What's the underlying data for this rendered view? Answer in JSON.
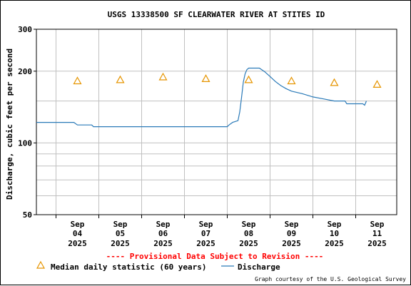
{
  "chart_data": {
    "type": "line",
    "title": "USGS 13338500 SF CLEARWATER RIVER AT STITES ID",
    "ylabel": "Discharge, cubic feet per second",
    "xlabel": "",
    "yscale": "log",
    "ylim": [
      50,
      300
    ],
    "y_ticks": [
      {
        "value": 300,
        "label": "300"
      },
      {
        "value": 200,
        "label": "200"
      },
      {
        "value": 100,
        "label": "100"
      },
      {
        "value": 50,
        "label": "50"
      }
    ],
    "y_minor_gridlines": [
      60,
      70,
      80,
      90,
      150
    ],
    "xlim": [
      "2025-09-03T13:00",
      "2025-09-11T23:00"
    ],
    "x_ticks": [
      {
        "date": "2025-09-04",
        "month": "Sep",
        "day": "04",
        "year": "2025"
      },
      {
        "date": "2025-09-05",
        "month": "Sep",
        "day": "05",
        "year": "2025"
      },
      {
        "date": "2025-09-06",
        "month": "Sep",
        "day": "06",
        "year": "2025"
      },
      {
        "date": "2025-09-07",
        "month": "Sep",
        "day": "07",
        "year": "2025"
      },
      {
        "date": "2025-09-08",
        "month": "Sep",
        "day": "08",
        "year": "2025"
      },
      {
        "date": "2025-09-09",
        "month": "Sep",
        "day": "09",
        "year": "2025"
      },
      {
        "date": "2025-09-10",
        "month": "Sep",
        "day": "10",
        "year": "2025"
      },
      {
        "date": "2025-09-11",
        "month": "Sep",
        "day": "11",
        "year": "2025"
      }
    ],
    "grid": true,
    "series": [
      {
        "name": "Median daily statistic (60 years)",
        "marker": "triangle",
        "color": "#e69500",
        "points": [
          {
            "x": "2025-09-04T12:00",
            "y": 182
          },
          {
            "x": "2025-09-05T12:00",
            "y": 184
          },
          {
            "x": "2025-09-06T12:00",
            "y": 189
          },
          {
            "x": "2025-09-07T12:00",
            "y": 186
          },
          {
            "x": "2025-09-08T12:00",
            "y": 184
          },
          {
            "x": "2025-09-09T12:00",
            "y": 182
          },
          {
            "x": "2025-09-10T12:00",
            "y": 179
          },
          {
            "x": "2025-09-11T12:00",
            "y": 176
          }
        ]
      },
      {
        "name": "Discharge",
        "marker": "line",
        "color": "#2a7ab8",
        "points": [
          {
            "x": "2025-09-03T13:00",
            "y": 122
          },
          {
            "x": "2025-09-04T10:00",
            "y": 122
          },
          {
            "x": "2025-09-04T12:00",
            "y": 119
          },
          {
            "x": "2025-09-04T20:00",
            "y": 119
          },
          {
            "x": "2025-09-04T21:00",
            "y": 117
          },
          {
            "x": "2025-09-08T00:00",
            "y": 117
          },
          {
            "x": "2025-09-08T01:00",
            "y": 119
          },
          {
            "x": "2025-09-08T03:00",
            "y": 122
          },
          {
            "x": "2025-09-08T06:00",
            "y": 124
          },
          {
            "x": "2025-09-08T07:00",
            "y": 135
          },
          {
            "x": "2025-09-08T08:00",
            "y": 155
          },
          {
            "x": "2025-09-08T09:00",
            "y": 180
          },
          {
            "x": "2025-09-08T10:00",
            "y": 195
          },
          {
            "x": "2025-09-08T11:00",
            "y": 203
          },
          {
            "x": "2025-09-08T12:00",
            "y": 206
          },
          {
            "x": "2025-09-08T18:00",
            "y": 206
          },
          {
            "x": "2025-09-08T21:00",
            "y": 199
          },
          {
            "x": "2025-09-09T00:00",
            "y": 190
          },
          {
            "x": "2025-09-09T03:00",
            "y": 181
          },
          {
            "x": "2025-09-09T06:00",
            "y": 174
          },
          {
            "x": "2025-09-09T09:00",
            "y": 169
          },
          {
            "x": "2025-09-09T12:00",
            "y": 165
          },
          {
            "x": "2025-09-09T18:00",
            "y": 161
          },
          {
            "x": "2025-09-10T00:00",
            "y": 156
          },
          {
            "x": "2025-09-10T06:00",
            "y": 153
          },
          {
            "x": "2025-09-10T12:00",
            "y": 150
          },
          {
            "x": "2025-09-10T18:00",
            "y": 150
          },
          {
            "x": "2025-09-10T19:00",
            "y": 146
          },
          {
            "x": "2025-09-11T04:00",
            "y": 146
          },
          {
            "x": "2025-09-11T05:00",
            "y": 144
          },
          {
            "x": "2025-09-11T06:00",
            "y": 150
          }
        ]
      }
    ],
    "provisional_note": "---- Provisional Data Subject to Revision ----",
    "credit": "Graph courtesy of the U.S. Geological Survey",
    "colors": {
      "provisional_text": "#ff0000",
      "grid": "#c0c0c0",
      "axis": "#000000"
    }
  }
}
